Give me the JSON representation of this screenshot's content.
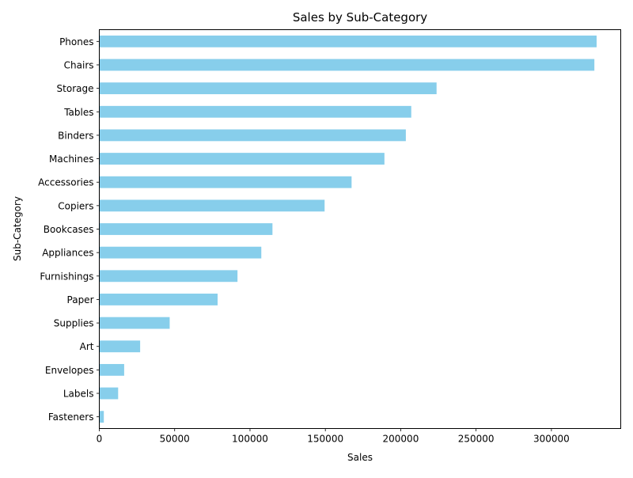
{
  "chart_data": {
    "type": "bar",
    "orientation": "horizontal",
    "title": "Sales by Sub-Category",
    "xlabel": "Sales",
    "ylabel": "Sub-Category",
    "xlim": [
      0,
      346000
    ],
    "xticks": [
      0,
      50000,
      100000,
      150000,
      200000,
      250000,
      300000
    ],
    "categories": [
      "Phones",
      "Chairs",
      "Storage",
      "Tables",
      "Binders",
      "Machines",
      "Accessories",
      "Copiers",
      "Bookcases",
      "Appliances",
      "Furnishings",
      "Paper",
      "Supplies",
      "Art",
      "Envelopes",
      "Labels",
      "Fasteners"
    ],
    "values": [
      330000,
      328500,
      223800,
      207000,
      203400,
      189200,
      167400,
      149500,
      114900,
      107500,
      91700,
      78500,
      46700,
      27100,
      16500,
      12500,
      3000
    ],
    "grid": false,
    "legend": "none",
    "bar_color": "#87ceeb"
  }
}
